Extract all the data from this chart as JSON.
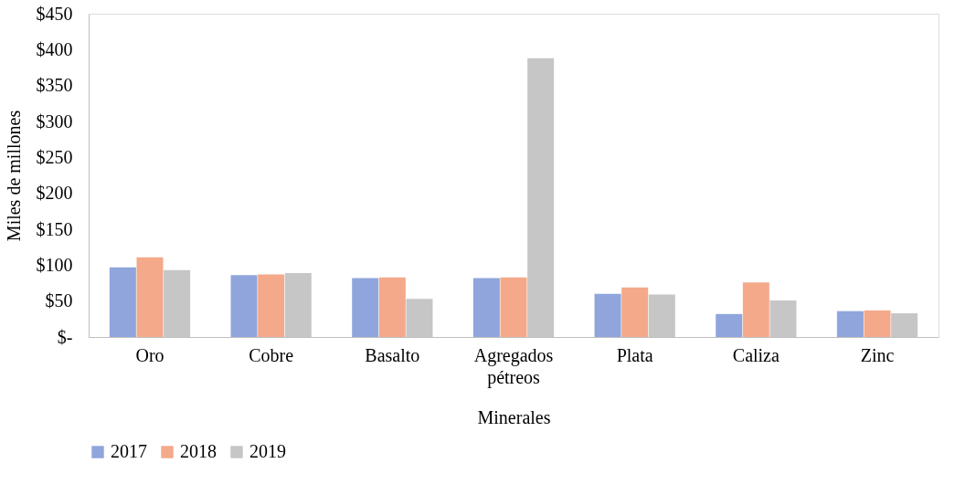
{
  "chart_data": {
    "type": "bar",
    "xlabel": "Minerales",
    "ylabel": "Miles de millones",
    "categories": [
      "Oro",
      "Cobre",
      "Basalto",
      "Agregados pétreos",
      "Plata",
      "Caliza",
      "Zinc"
    ],
    "series": [
      {
        "name": "2017",
        "color": "#8fa5dc",
        "values": [
          97,
          86,
          82,
          82,
          60,
          32,
          36
        ]
      },
      {
        "name": "2018",
        "color": "#f4a98a",
        "values": [
          111,
          87,
          83,
          83,
          69,
          76,
          37
        ]
      },
      {
        "name": "2019",
        "color": "#c6c6c6",
        "values": [
          93,
          89,
          53,
          388,
          59,
          51,
          33
        ]
      }
    ],
    "ylim": [
      0,
      450
    ],
    "yticks": [
      {
        "value": 0,
        "label": "$-"
      },
      {
        "value": 50,
        "label": "$50"
      },
      {
        "value": 100,
        "label": "$100"
      },
      {
        "value": 150,
        "label": "$150"
      },
      {
        "value": 200,
        "label": "$200"
      },
      {
        "value": 250,
        "label": "$250"
      },
      {
        "value": 300,
        "label": "$300"
      },
      {
        "value": 350,
        "label": "$350"
      },
      {
        "value": 400,
        "label": "$400"
      },
      {
        "value": 450,
        "label": "$450"
      }
    ],
    "grid": false,
    "legend": "bottom"
  }
}
